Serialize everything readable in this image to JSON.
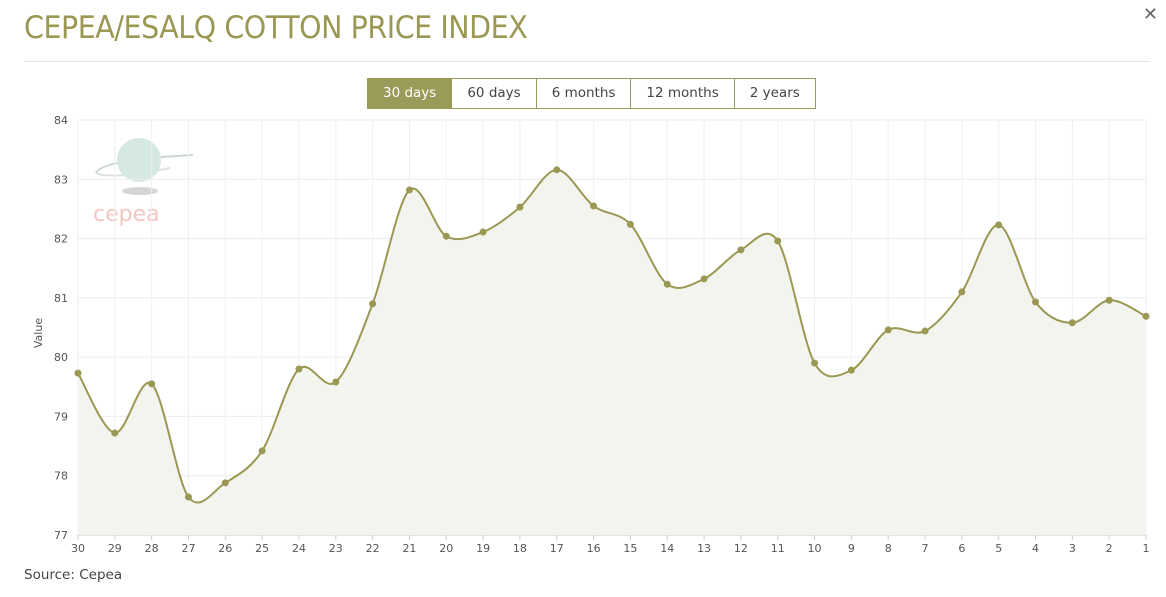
{
  "header": {
    "title": "CEPEA/ESALQ COTTON PRICE INDEX",
    "close_icon": "close-icon"
  },
  "ranges": [
    "30 days",
    "60 days",
    "6 months",
    "12 months",
    "2 years"
  ],
  "selected_range": "30 days",
  "source": "Source: Cepea",
  "logo_text": "cepea",
  "chart_data": {
    "type": "line",
    "title": "",
    "xlabel": "",
    "ylabel": "Value",
    "ylim": [
      77,
      84
    ],
    "yticks": [
      77,
      78,
      79,
      80,
      81,
      82,
      83,
      84
    ],
    "categories": [
      "30",
      "29",
      "28",
      "27",
      "26",
      "25",
      "24",
      "23",
      "22",
      "21",
      "20",
      "19",
      "18",
      "17",
      "16",
      "15",
      "14",
      "13",
      "12",
      "11",
      "10",
      "9",
      "8",
      "7",
      "6",
      "5",
      "4",
      "3",
      "2",
      "1"
    ],
    "values": [
      79.73,
      78.72,
      79.55,
      77.64,
      77.88,
      78.42,
      79.8,
      79.58,
      80.9,
      82.82,
      82.04,
      82.11,
      82.53,
      83.16,
      82.55,
      82.24,
      81.23,
      81.32,
      81.81,
      81.96,
      79.9,
      79.78,
      80.46,
      80.44,
      81.1,
      82.23,
      80.93,
      80.58,
      80.96,
      80.69
    ],
    "grid": true,
    "colors": {
      "line": "#9a9853",
      "fill": "#f4f4ef"
    }
  }
}
